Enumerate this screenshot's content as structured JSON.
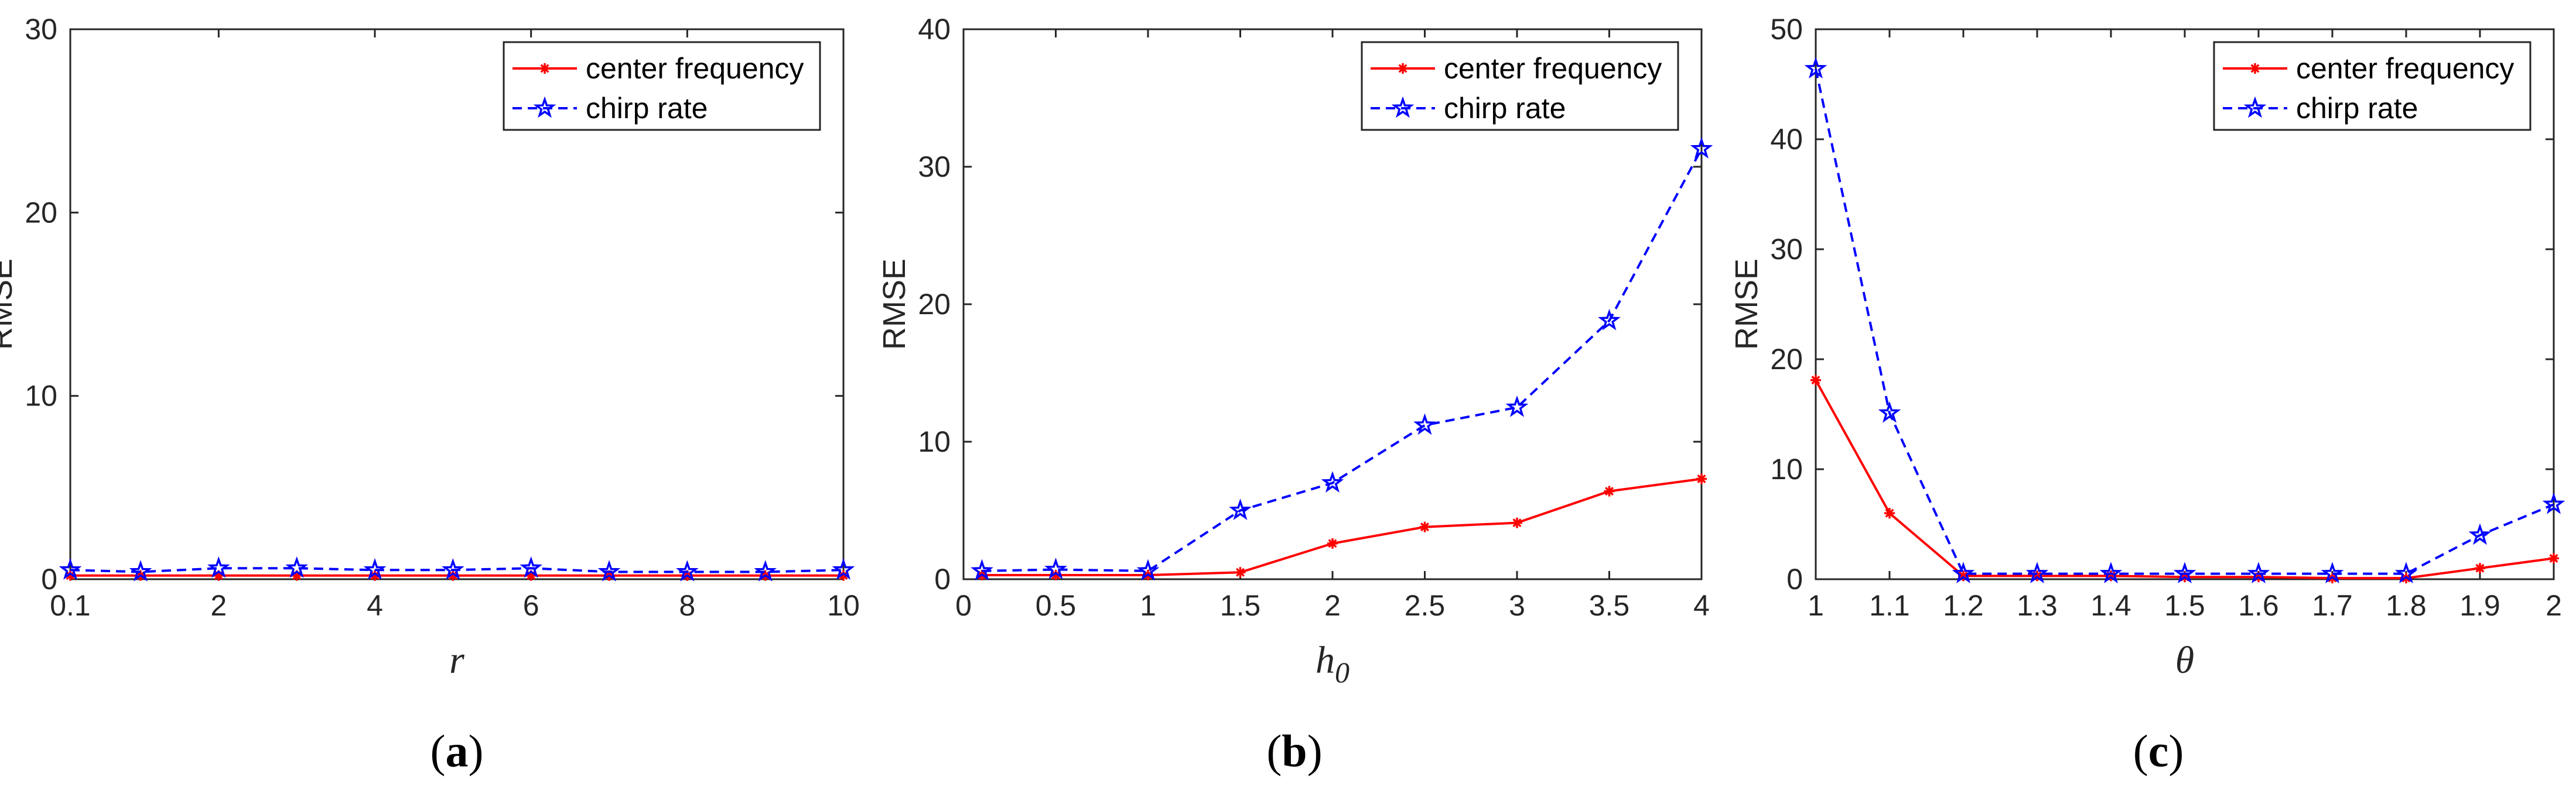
{
  "chart_data": [
    {
      "type": "line",
      "caption_letter": "a",
      "xlabel": "r",
      "xlabel_sub": "",
      "ylabel": "RMSE",
      "xlim": [
        0.1,
        10
      ],
      "ylim": [
        0,
        30
      ],
      "xticks": [
        0.1,
        2,
        4,
        6,
        8,
        10
      ],
      "xtick_labels": [
        "0.1",
        "2",
        "4",
        "6",
        "8",
        "10"
      ],
      "yticks": [
        0,
        10,
        20,
        30
      ],
      "ytick_labels": [
        "0",
        "10",
        "20",
        "30"
      ],
      "x": [
        0.1,
        1,
        2,
        3,
        4,
        5,
        6,
        7,
        8,
        9,
        10
      ],
      "series": [
        {
          "name": "center frequency",
          "values": [
            0.2,
            0.2,
            0.2,
            0.2,
            0.2,
            0.2,
            0.2,
            0.2,
            0.2,
            0.2,
            0.2
          ]
        },
        {
          "name": "chirp rate",
          "values": [
            0.5,
            0.4,
            0.6,
            0.6,
            0.5,
            0.5,
            0.6,
            0.4,
            0.4,
            0.4,
            0.5
          ]
        }
      ],
      "legend_position": "top-right"
    },
    {
      "type": "line",
      "caption_letter": "b",
      "xlabel": "h",
      "xlabel_sub": "0",
      "ylabel": "RMSE",
      "xlim": [
        0,
        4
      ],
      "ylim": [
        0,
        40
      ],
      "xticks": [
        0,
        0.5,
        1,
        1.5,
        2,
        2.5,
        3,
        3.5,
        4
      ],
      "xtick_labels": [
        "0",
        "0.5",
        "1",
        "1.5",
        "2",
        "2.5",
        "3",
        "3.5",
        "4"
      ],
      "yticks": [
        0,
        10,
        20,
        30,
        40
      ],
      "ytick_labels": [
        "0",
        "10",
        "20",
        "30",
        "40"
      ],
      "x": [
        0.1,
        0.5,
        1,
        1.5,
        2,
        2.5,
        3,
        3.5,
        4
      ],
      "series": [
        {
          "name": "center frequency",
          "values": [
            0.3,
            0.3,
            0.3,
            0.5,
            2.6,
            3.8,
            4.1,
            6.4,
            7.3
          ]
        },
        {
          "name": "chirp rate",
          "values": [
            0.6,
            0.7,
            0.6,
            5.0,
            7.0,
            11.2,
            12.5,
            18.8,
            31.3
          ]
        }
      ],
      "legend_position": "top-right"
    },
    {
      "type": "line",
      "caption_letter": "c",
      "xlabel": "θ",
      "xlabel_sub": "",
      "ylabel": "RMSE",
      "xlim": [
        1,
        2
      ],
      "ylim": [
        0,
        50
      ],
      "xticks": [
        1,
        1.1,
        1.2,
        1.3,
        1.4,
        1.5,
        1.6,
        1.7,
        1.8,
        1.9,
        2
      ],
      "xtick_labels": [
        "1",
        "1.1",
        "1.2",
        "1.3",
        "1.4",
        "1.5",
        "1.6",
        "1.7",
        "1.8",
        "1.9",
        "2"
      ],
      "yticks": [
        0,
        10,
        20,
        30,
        40,
        50
      ],
      "ytick_labels": [
        "0",
        "10",
        "20",
        "30",
        "40",
        "50"
      ],
      "x": [
        1,
        1.1,
        1.2,
        1.3,
        1.4,
        1.5,
        1.6,
        1.7,
        1.8,
        1.9,
        2
      ],
      "series": [
        {
          "name": "center frequency",
          "values": [
            18.1,
            6.0,
            0.3,
            0.3,
            0.3,
            0.2,
            0.2,
            0.1,
            0.1,
            1.0,
            1.9
          ]
        },
        {
          "name": "chirp rate",
          "values": [
            46.4,
            15.1,
            0.5,
            0.5,
            0.5,
            0.5,
            0.5,
            0.5,
            0.5,
            4.0,
            6.8
          ]
        }
      ],
      "legend_position": "top-right"
    }
  ],
  "series_styles": [
    {
      "color": "#ff0000",
      "dash": "solid",
      "marker": "asterisk"
    },
    {
      "color": "#0000ff",
      "dash": "dashed",
      "marker": "star"
    }
  ]
}
